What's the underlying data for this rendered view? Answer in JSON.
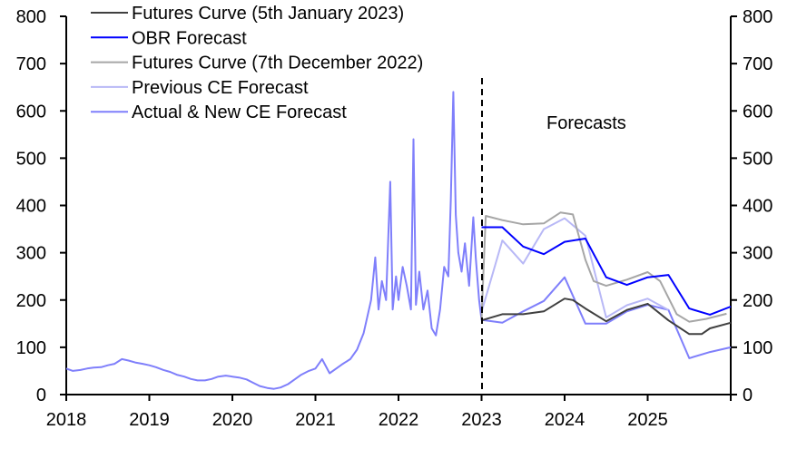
{
  "chart_data": {
    "type": "line",
    "title": "",
    "xlabel": "",
    "ylabel": "",
    "xlim": [
      2018,
      2026
    ],
    "ylim": [
      0,
      800
    ],
    "yticks": [
      0,
      100,
      200,
      300,
      400,
      500,
      600,
      700,
      800
    ],
    "xticks": [
      2018,
      2019,
      2020,
      2021,
      2022,
      2023,
      2024,
      2025
    ],
    "xtick_labels": [
      "2018",
      "2019",
      "2020",
      "2021",
      "2022",
      "2023",
      "2024",
      "2025"
    ],
    "ytick_labels": [
      "0",
      "100",
      "200",
      "300",
      "400",
      "500",
      "600",
      "700",
      "800"
    ],
    "legend_position": "top-left",
    "annotation": "Forecasts",
    "forecast_start": 2023.03,
    "series": [
      {
        "name": "Futures Curve (5th January 2023)",
        "color": "#404040",
        "x": [
          2023.0,
          2023.25,
          2023.5,
          2023.75,
          2024.0,
          2024.1,
          2024.25,
          2024.5,
          2024.75,
          2025.0,
          2025.25,
          2025.5,
          2025.65,
          2025.75,
          2026.0
        ],
        "y": [
          157,
          170,
          170,
          176,
          203,
          200,
          182,
          155,
          179,
          192,
          157,
          128,
          128,
          140,
          152
        ]
      },
      {
        "name": "OBR Forecast",
        "color": "#0000ff",
        "x": [
          2023.0,
          2023.25,
          2023.5,
          2023.75,
          2024.0,
          2024.25,
          2024.5,
          2024.75,
          2025.0,
          2025.25,
          2025.5,
          2025.75,
          2026.0
        ],
        "y": [
          354,
          354,
          313,
          297,
          323,
          330,
          248,
          232,
          248,
          253,
          182,
          169,
          186
        ]
      },
      {
        "name": "Futures Curve (7th December 2022)",
        "color": "#a6a6a6",
        "x": [
          2023.0,
          2023.05,
          2023.25,
          2023.5,
          2023.75,
          2023.95,
          2024.1,
          2024.25,
          2024.35,
          2024.5,
          2024.75,
          2025.0,
          2025.15,
          2025.35,
          2025.5,
          2025.7,
          2025.95
        ],
        "y": [
          160,
          378,
          369,
          360,
          362,
          385,
          381,
          285,
          240,
          230,
          243,
          259,
          240,
          170,
          154,
          160,
          171
        ]
      },
      {
        "name": "Previous CE Forecast",
        "color": "#b8b8f6",
        "x": [
          2023.0,
          2023.25,
          2023.5,
          2023.75,
          2024.0,
          2024.25,
          2024.5,
          2024.75,
          2025.0,
          2025.25
        ],
        "y": [
          175,
          326,
          277,
          350,
          373,
          336,
          163,
          189,
          203,
          179
        ]
      },
      {
        "name": "Actual & New CE Forecast",
        "color": "#7f7ffb",
        "x": [
          2018.0,
          2018.08,
          2018.17,
          2018.25,
          2018.33,
          2018.42,
          2018.5,
          2018.58,
          2018.67,
          2018.75,
          2018.83,
          2018.92,
          2019.0,
          2019.08,
          2019.17,
          2019.25,
          2019.33,
          2019.42,
          2019.5,
          2019.58,
          2019.67,
          2019.75,
          2019.83,
          2019.92,
          2020.0,
          2020.08,
          2020.17,
          2020.25,
          2020.33,
          2020.42,
          2020.5,
          2020.58,
          2020.67,
          2020.75,
          2020.83,
          2020.92,
          2021.0,
          2021.08,
          2021.17,
          2021.25,
          2021.33,
          2021.42,
          2021.5,
          2021.58,
          2021.67,
          2021.72,
          2021.76,
          2021.8,
          2021.85,
          2021.9,
          2021.93,
          2021.97,
          2022.0,
          2022.05,
          2022.1,
          2022.15,
          2022.18,
          2022.21,
          2022.25,
          2022.3,
          2022.35,
          2022.4,
          2022.45,
          2022.5,
          2022.55,
          2022.6,
          2022.63,
          2022.66,
          2022.69,
          2022.72,
          2022.76,
          2022.8,
          2022.85,
          2022.9,
          2022.93,
          2022.97,
          2023.0,
          2023.25,
          2023.5,
          2023.75,
          2024.0,
          2024.25,
          2024.5,
          2024.75,
          2025.0,
          2025.25,
          2025.5,
          2025.75,
          2026.0
        ],
        "y": [
          55,
          50,
          52,
          55,
          57,
          58,
          62,
          65,
          75,
          72,
          68,
          65,
          62,
          58,
          52,
          48,
          42,
          38,
          33,
          30,
          30,
          33,
          38,
          40,
          38,
          36,
          32,
          25,
          18,
          14,
          12,
          15,
          22,
          32,
          42,
          50,
          55,
          75,
          45,
          55,
          65,
          75,
          95,
          130,
          200,
          290,
          180,
          240,
          200,
          450,
          180,
          250,
          200,
          270,
          230,
          180,
          540,
          190,
          260,
          180,
          220,
          140,
          125,
          180,
          270,
          250,
          410,
          640,
          380,
          300,
          260,
          320,
          230,
          375,
          290,
          200,
          158,
          152,
          176,
          198,
          248,
          150,
          150,
          176,
          190,
          179,
          77,
          90,
          100
        ]
      }
    ]
  }
}
